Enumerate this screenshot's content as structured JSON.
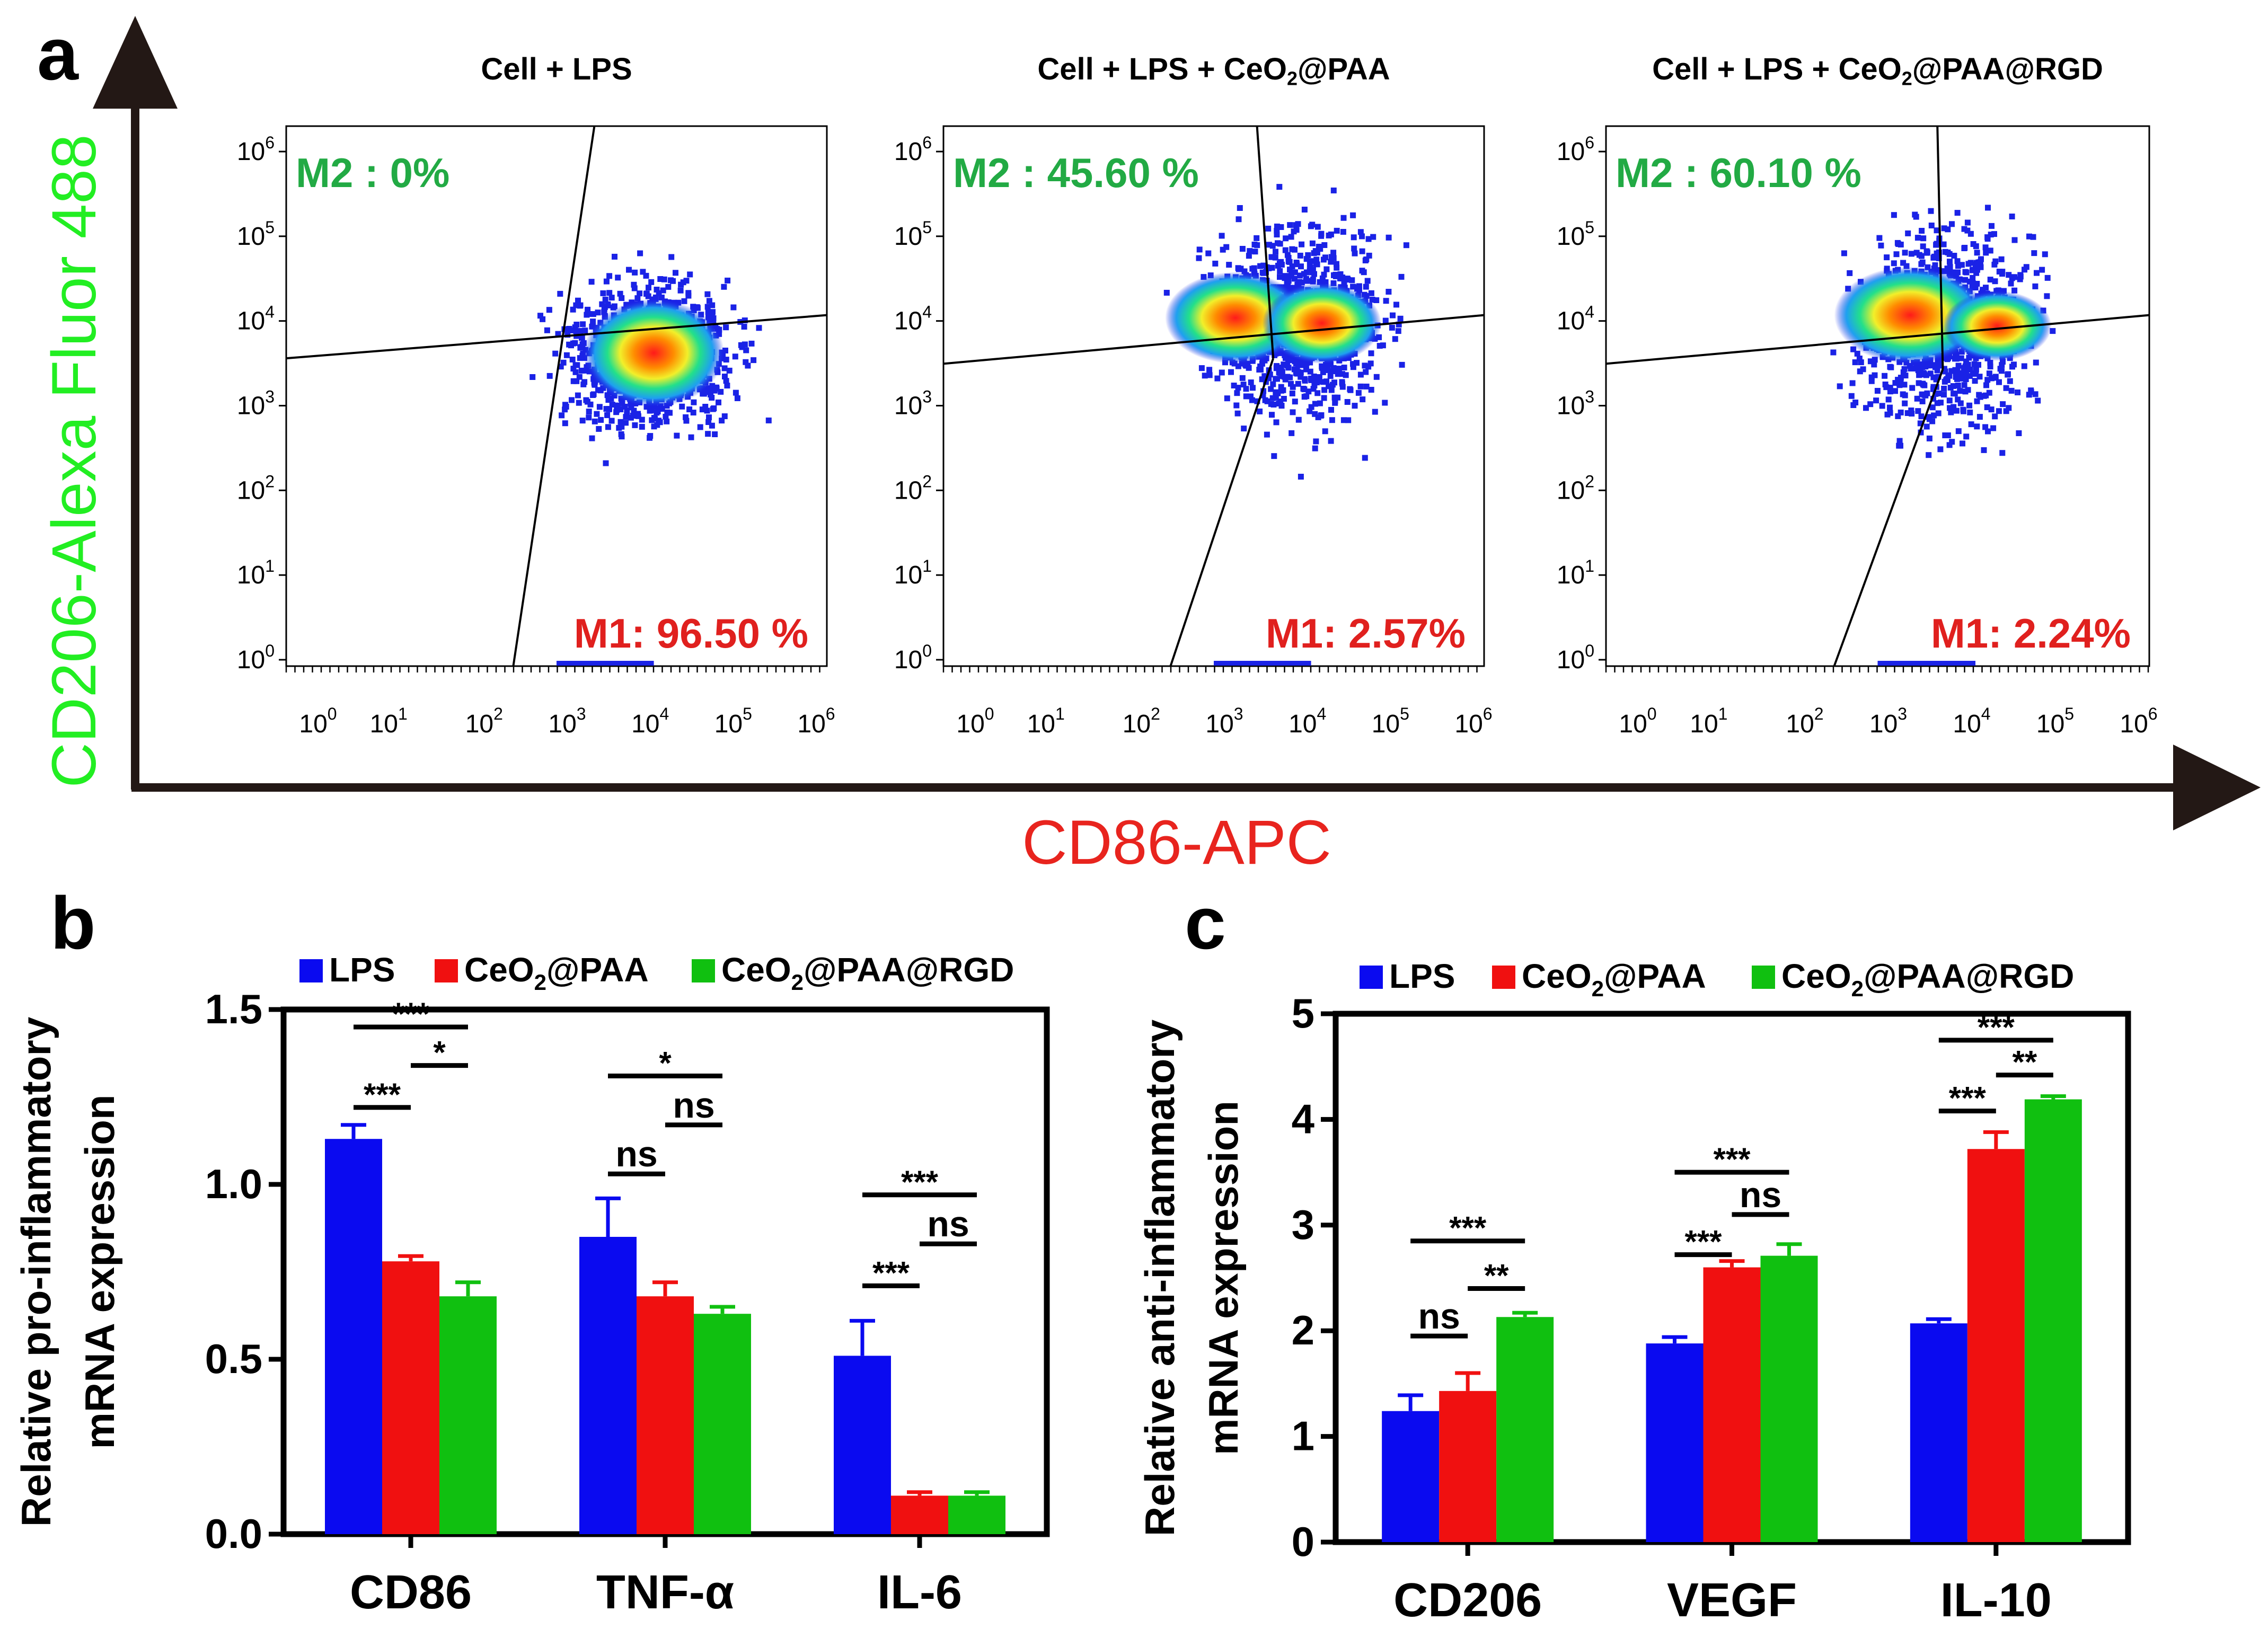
{
  "panel_a": {
    "letter": "a",
    "y_axis_label": "CD206-Alexa Fluor 488",
    "x_axis_label": "CD86-APC",
    "tick_base": "10",
    "tick_exponents": [
      "0",
      "1",
      "2",
      "3",
      "4",
      "5",
      "6"
    ],
    "colors": {
      "y_label": "#22ee22",
      "x_label": "#e8241e",
      "m2_text": "#22aa44",
      "m1_text": "#e0201e"
    },
    "plots": [
      {
        "title": "Cell + LPS",
        "m2_label": "M2 : 0%",
        "m1_label": "M1: 96.50 %"
      },
      {
        "title_prefix": "Cell + LPS + CeO",
        "title_sub": "2",
        "title_suffix": "@PAA",
        "m2_label": "M2 : 45.60 %",
        "m1_label": "M1: 2.57%"
      },
      {
        "title_prefix": "Cell + LPS + CeO",
        "title_sub": "2",
        "title_suffix": "@PAA@RGD",
        "m2_label": "M2 : 60.10 %",
        "m1_label": "M1: 2.24%"
      }
    ]
  },
  "chart_data": [
    {
      "panel": "b",
      "type": "bar",
      "ylabel_line1": "Relative pro-inflammatory",
      "ylabel_line2": "mRNA expression",
      "xlabel": "",
      "categories": [
        "CD86",
        "TNF-α",
        "IL-6"
      ],
      "ylim": [
        0,
        1.5
      ],
      "yticks": [
        "0.0",
        "0.5",
        "1.0",
        "1.5"
      ],
      "legend": [
        {
          "pre": "LPS",
          "sub": "",
          "post": ""
        },
        {
          "pre": "CeO",
          "sub": "2",
          "post": "@PAA"
        },
        {
          "pre": "CeO",
          "sub": "2",
          "post": "@PAA@RGD"
        }
      ],
      "legend_placement": "top",
      "series": [
        {
          "name": "LPS",
          "color": "#0a0af0",
          "values": [
            1.13,
            0.85,
            0.51
          ],
          "errors": [
            0.04,
            0.11,
            0.1
          ]
        },
        {
          "name": "CeO2@PAA",
          "color": "#f01010",
          "values": [
            0.78,
            0.68,
            0.11
          ],
          "errors": [
            0.015,
            0.04,
            0.01
          ]
        },
        {
          "name": "CeO2@PAA@RGD",
          "color": "#10c010",
          "values": [
            0.68,
            0.63,
            0.11
          ],
          "errors": [
            0.04,
            0.02,
            0.01
          ]
        }
      ],
      "significance": [
        {
          "category": 0,
          "from": 0,
          "to": 2,
          "level": 1.45,
          "label": "***"
        },
        {
          "category": 0,
          "from": 1,
          "to": 2,
          "level": 1.34,
          "label": "*"
        },
        {
          "category": 0,
          "from": 0,
          "to": 1,
          "level": 1.22,
          "label": "***"
        },
        {
          "category": 1,
          "from": 0,
          "to": 2,
          "level": 1.31,
          "label": "*"
        },
        {
          "category": 1,
          "from": 1,
          "to": 2,
          "level": 1.17,
          "label": "ns"
        },
        {
          "category": 1,
          "from": 0,
          "to": 1,
          "level": 1.03,
          "label": "ns"
        },
        {
          "category": 2,
          "from": 0,
          "to": 2,
          "level": 0.97,
          "label": "***"
        },
        {
          "category": 2,
          "from": 1,
          "to": 2,
          "level": 0.83,
          "label": "ns"
        },
        {
          "category": 2,
          "from": 0,
          "to": 1,
          "level": 0.71,
          "label": "***"
        }
      ]
    },
    {
      "panel": "c",
      "type": "bar",
      "ylabel_line1": "Relative anti-inflammatory",
      "ylabel_line2": "mRNA expression",
      "xlabel": "",
      "categories": [
        "CD206",
        "VEGF",
        "IL-10"
      ],
      "ylim": [
        0,
        5
      ],
      "yticks": [
        "0",
        "1",
        "2",
        "3",
        "4",
        "5"
      ],
      "legend": [
        {
          "pre": "LPS",
          "sub": "",
          "post": ""
        },
        {
          "pre": "CeO",
          "sub": "2",
          "post": "@PAA"
        },
        {
          "pre": "CeO",
          "sub": "2",
          "post": "@PAA@RGD"
        }
      ],
      "legend_placement": "top",
      "series": [
        {
          "name": "LPS",
          "color": "#0a0af0",
          "values": [
            1.24,
            1.88,
            2.07
          ],
          "errors": [
            0.15,
            0.06,
            0.04
          ]
        },
        {
          "name": "CeO2@PAA",
          "color": "#f01010",
          "values": [
            1.43,
            2.6,
            3.72
          ],
          "errors": [
            0.17,
            0.06,
            0.16
          ]
        },
        {
          "name": "CeO2@PAA@RGD",
          "color": "#10c010",
          "values": [
            2.13,
            2.71,
            4.19
          ],
          "errors": [
            0.04,
            0.11,
            0.03
          ]
        }
      ],
      "significance": [
        {
          "category": 0,
          "from": 0,
          "to": 2,
          "level": 2.85,
          "label": "***"
        },
        {
          "category": 0,
          "from": 1,
          "to": 2,
          "level": 2.4,
          "label": "**"
        },
        {
          "category": 0,
          "from": 0,
          "to": 1,
          "level": 1.95,
          "label": "ns"
        },
        {
          "category": 1,
          "from": 0,
          "to": 2,
          "level": 3.5,
          "label": "***"
        },
        {
          "category": 1,
          "from": 1,
          "to": 2,
          "level": 3.1,
          "label": "ns"
        },
        {
          "category": 1,
          "from": 0,
          "to": 1,
          "level": 2.72,
          "label": "***"
        },
        {
          "category": 2,
          "from": 0,
          "to": 2,
          "level": 4.75,
          "label": "***"
        },
        {
          "category": 2,
          "from": 1,
          "to": 2,
          "level": 4.42,
          "label": "**"
        },
        {
          "category": 2,
          "from": 0,
          "to": 1,
          "level": 4.08,
          "label": "***"
        }
      ]
    }
  ]
}
